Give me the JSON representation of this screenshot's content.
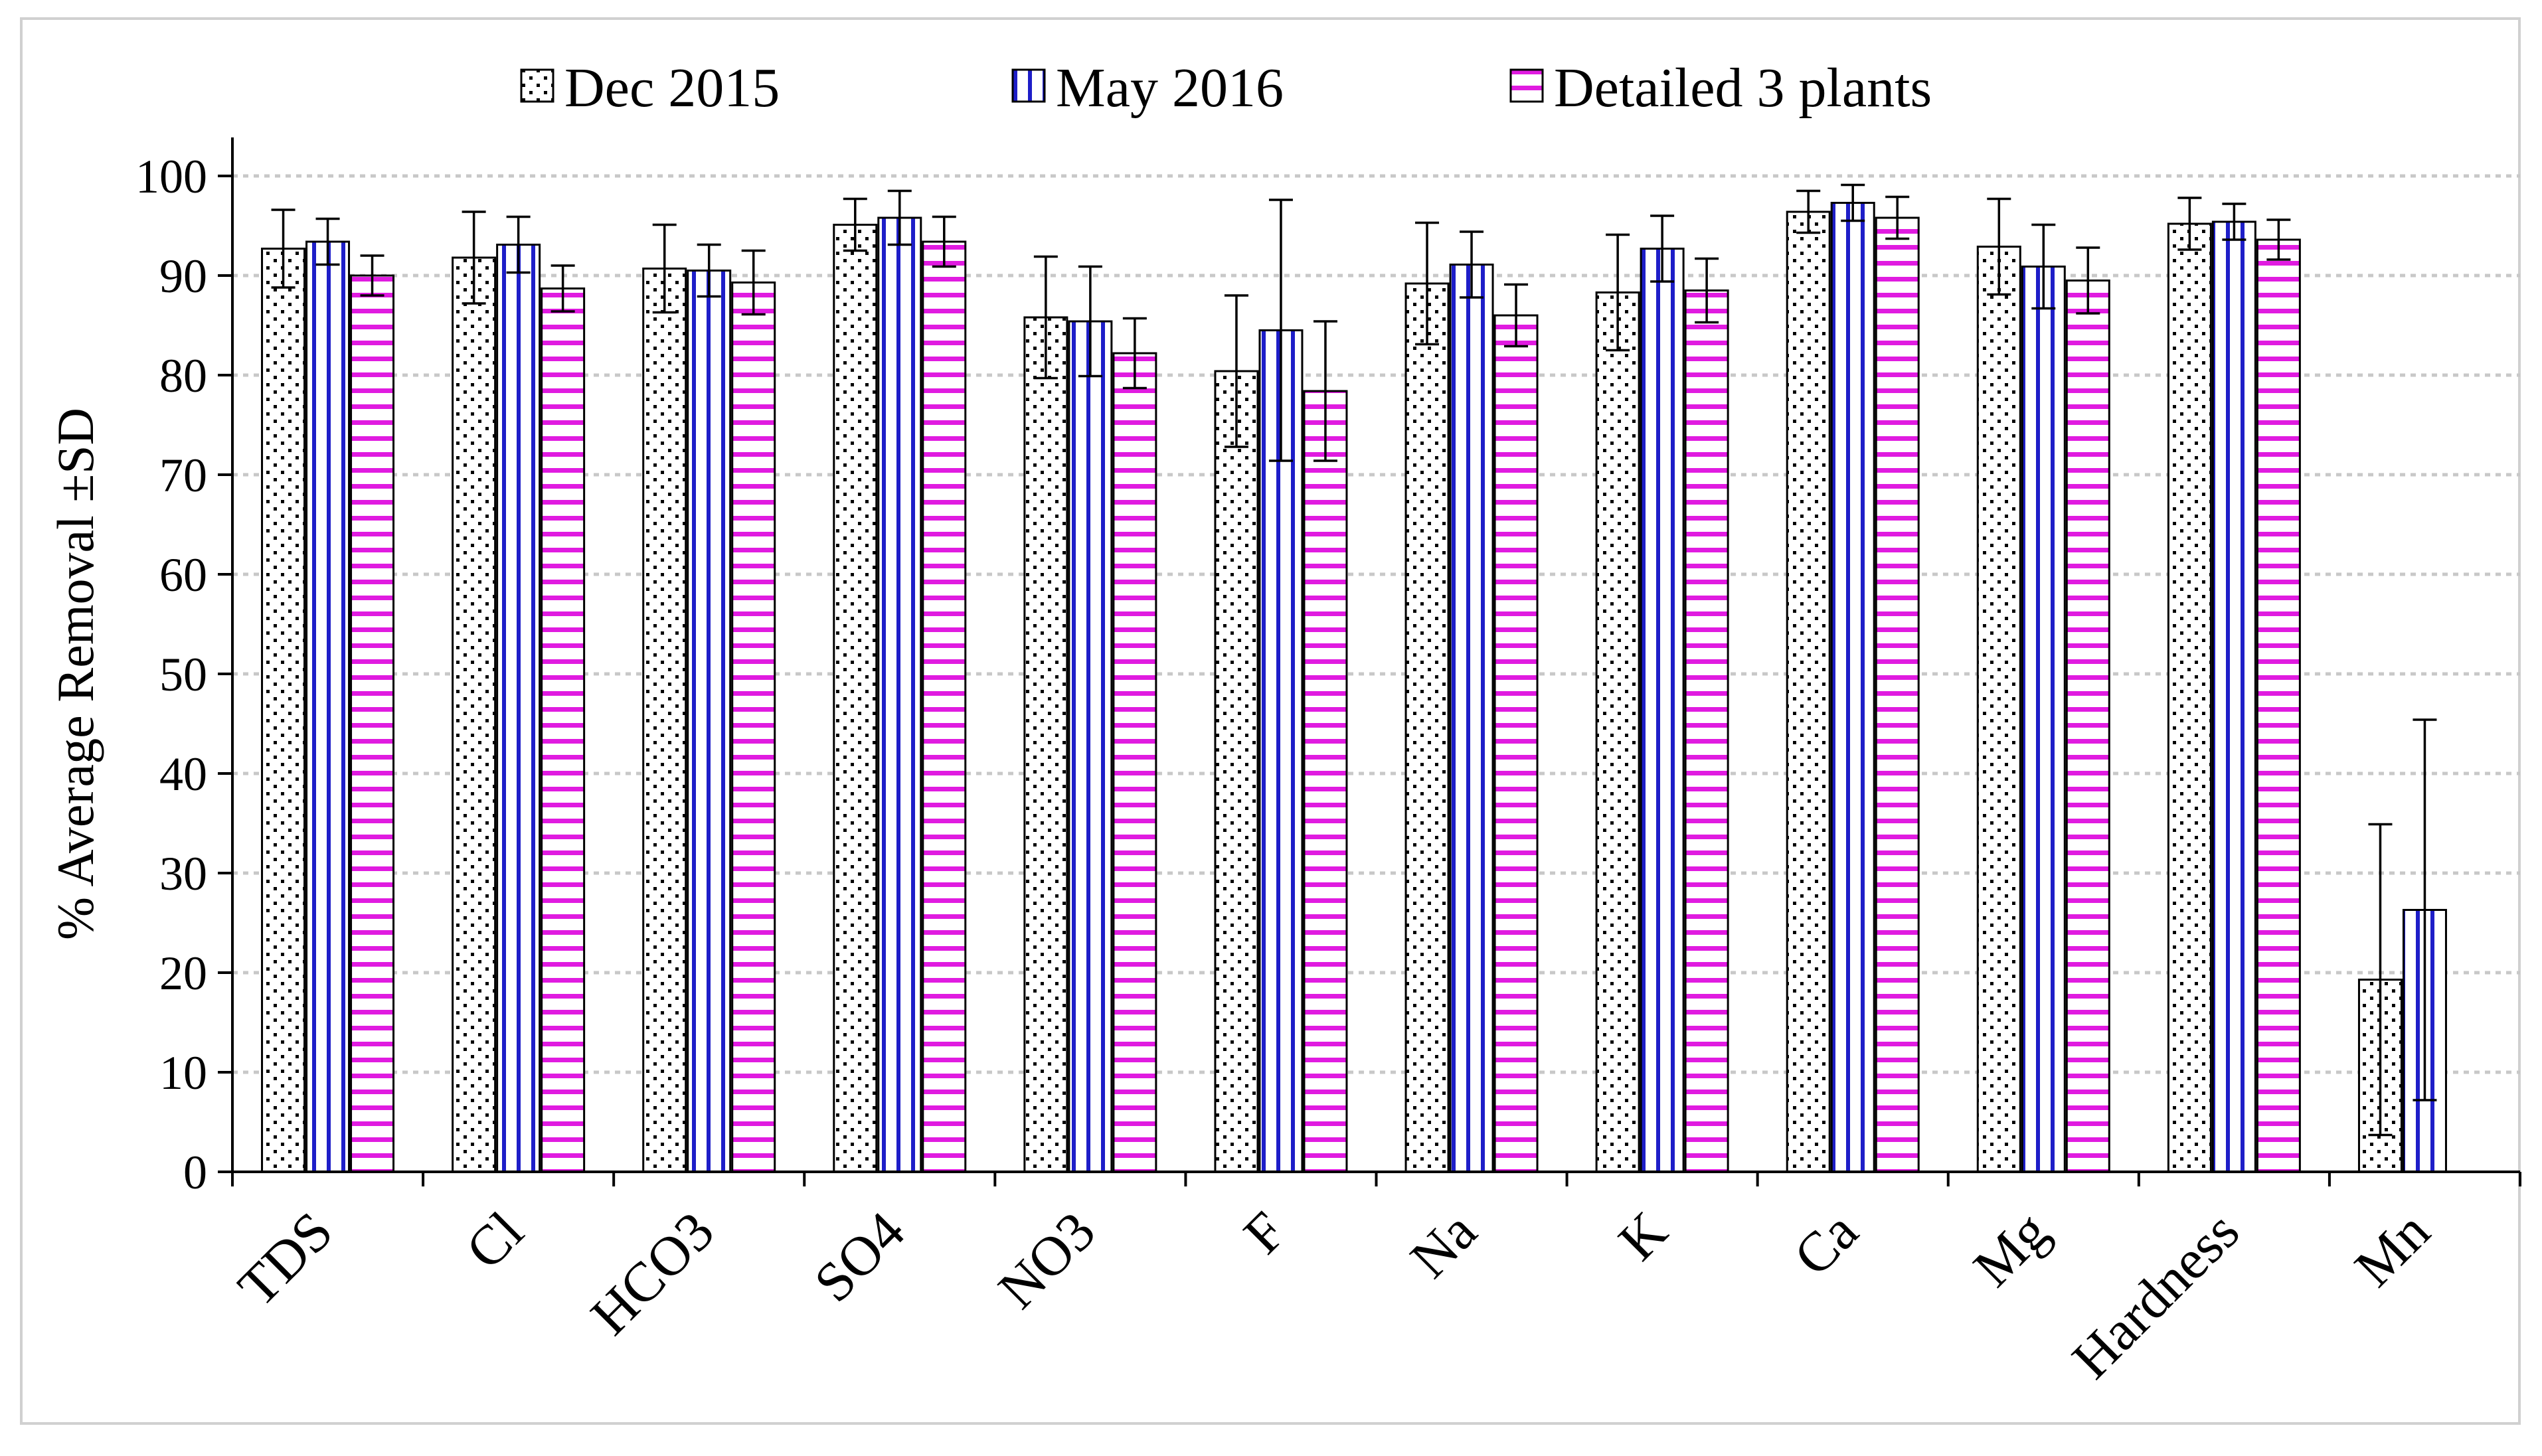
{
  "chart_data": {
    "type": "bar",
    "title": "",
    "xlabel": "",
    "ylabel": "% Average Removal ±SD",
    "ylim": [
      0,
      100
    ],
    "yticks": [
      0,
      10,
      20,
      30,
      40,
      50,
      60,
      70,
      80,
      90,
      100
    ],
    "grid": true,
    "legend_position": "top",
    "categories": [
      "TDS",
      "Cl",
      "HCO3",
      "SO4",
      "NO3",
      "F",
      "Na",
      "K",
      "Ca",
      "Mg",
      "Hardness",
      "Mn"
    ],
    "series": [
      {
        "name": "Dec 2015",
        "pattern": "dots",
        "color": "#000000",
        "values": [
          92.7,
          91.8,
          90.7,
          95.1,
          85.8,
          80.4,
          89.2,
          88.3,
          96.4,
          92.9,
          95.2,
          19.3
        ],
        "errors": [
          3.9,
          4.6,
          4.4,
          2.6,
          6.1,
          7.6,
          6.1,
          5.8,
          2.1,
          4.8,
          2.6,
          15.6
        ]
      },
      {
        "name": "May 2016",
        "pattern": "vertical-lines",
        "color": "#1e1ec8",
        "values": [
          93.4,
          93.1,
          90.5,
          95.8,
          85.4,
          84.5,
          91.1,
          92.7,
          97.3,
          90.9,
          95.4,
          26.3
        ],
        "errors": [
          2.3,
          2.8,
          2.6,
          2.7,
          5.5,
          13.1,
          3.3,
          3.3,
          1.8,
          4.2,
          1.8,
          19.1
        ]
      },
      {
        "name": "Detailed 3 plants",
        "pattern": "horizontal-lines",
        "color": "#e01be0",
        "values": [
          90.0,
          88.7,
          89.3,
          93.4,
          82.2,
          78.4,
          86.0,
          88.5,
          95.8,
          89.5,
          93.6,
          null
        ],
        "errors": [
          2.0,
          2.3,
          3.2,
          2.5,
          3.5,
          7.0,
          3.1,
          3.2,
          2.1,
          3.3,
          2.0,
          null
        ]
      }
    ]
  }
}
